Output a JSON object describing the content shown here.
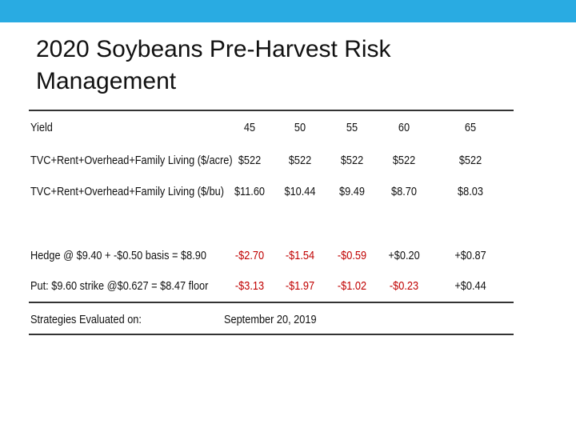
{
  "title": "2020 Soybeans Pre-Harvest Risk Management",
  "table": {
    "rows": [
      [
        "Yield",
        "45",
        "50",
        "55",
        "60",
        "65"
      ],
      [
        "TVC+Rent+Overhead+Family Living ($/acre)",
        "$522",
        "$522",
        "$522",
        "$522",
        "$522"
      ],
      [
        "TVC+Rent+Overhead+Family Living ($/bu)",
        "$11.60",
        "$10.44",
        "$9.49",
        "$8.70",
        "$8.03"
      ],
      [
        "Hedge @ $9.40 + -$0.50 basis = $8.90",
        "-$2.70",
        "-$1.54",
        "-$0.59",
        "+$0.20",
        "+$0.87"
      ],
      [
        "Put: $9.60 strike @$0.627 = $8.47 floor",
        "-$3.13",
        "-$1.97",
        "-$1.02",
        "-$0.23",
        "+$0.44"
      ]
    ],
    "footer": [
      "Strategies Evaluated on:",
      "September 20, 2019"
    ],
    "negative_color": "#c00000"
  }
}
